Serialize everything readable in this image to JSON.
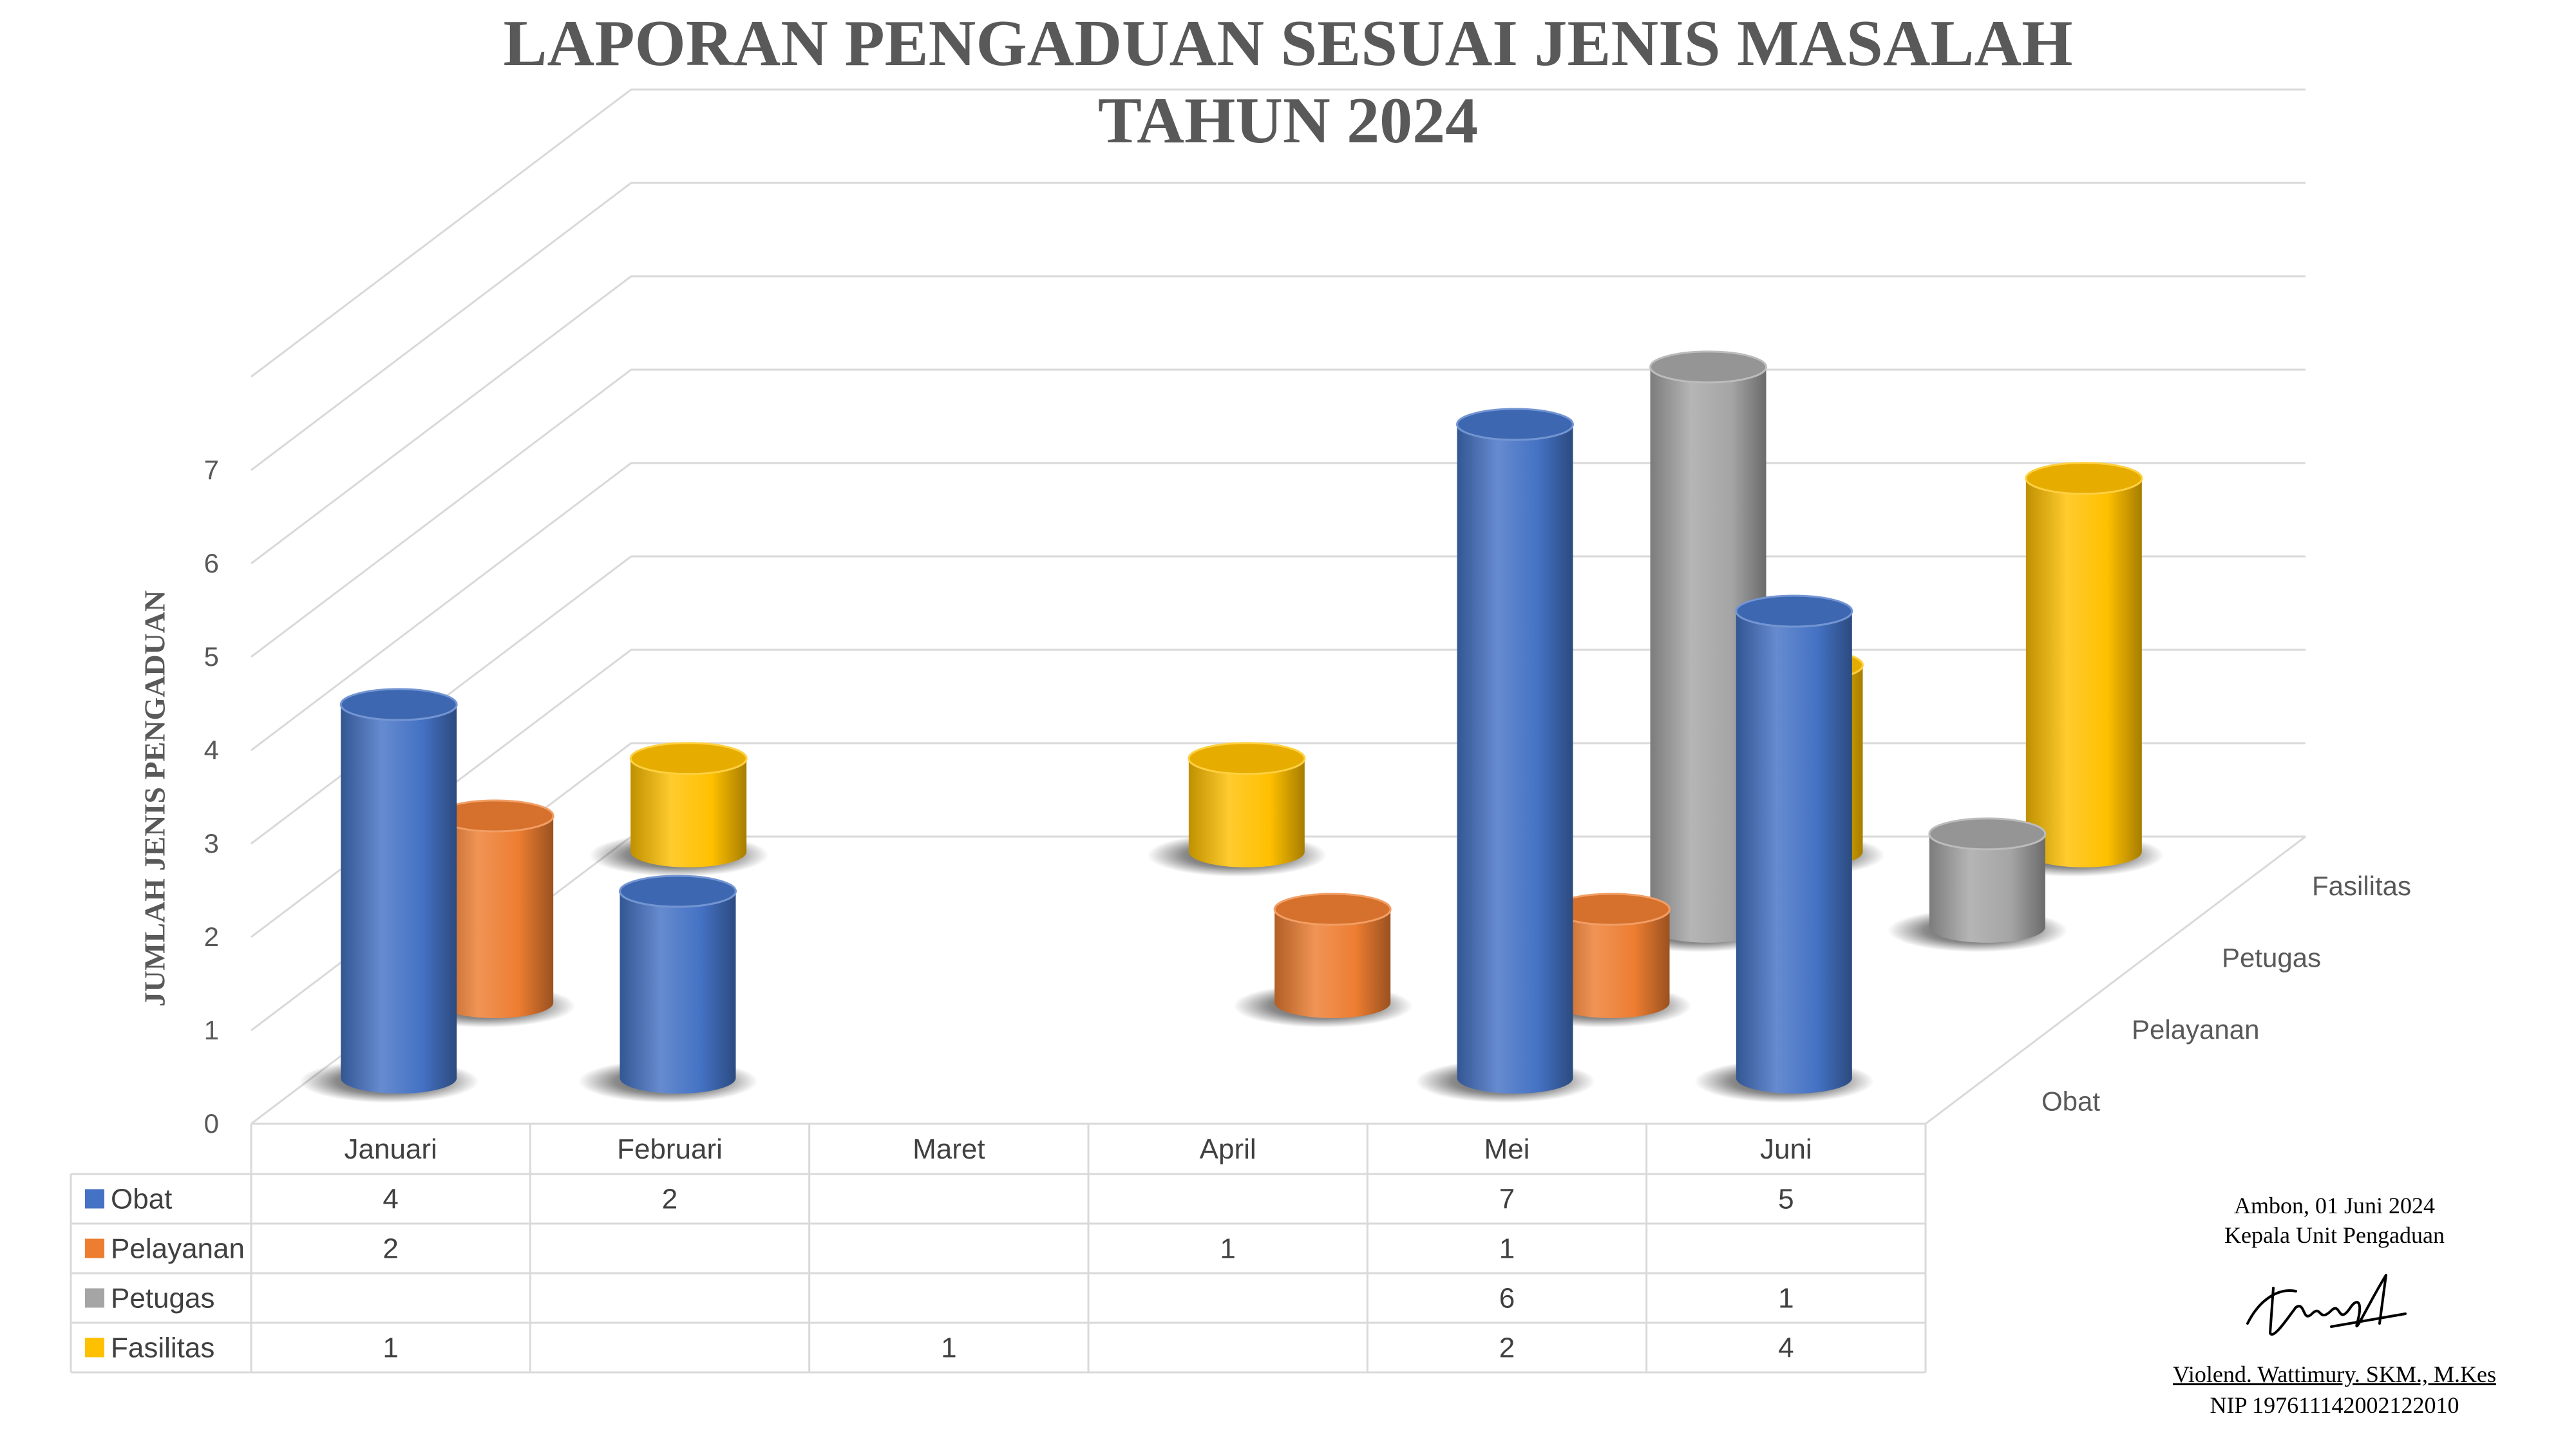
{
  "title": {
    "line1": "LAPORAN PENGADUAN SESUAI JENIS MASALAH",
    "line2": "TAHUN 2024"
  },
  "colors": {
    "Obat": "#4472C4",
    "Pelayanan": "#ED7D31",
    "Petugas": "#A5A5A5",
    "Fasilitas": "#FFC000"
  },
  "chart_data": {
    "type": "bar",
    "style": "3d-cylinder",
    "title": "LAPORAN PENGADUAN SESUAI JENIS MASALAH TAHUN 2024",
    "xlabel": "",
    "ylabel": "JUMLAH JENIS PENGADUAN",
    "categories": [
      "Januari",
      "Februari",
      "Maret",
      "April",
      "Mei",
      "Juni"
    ],
    "series": [
      {
        "name": "Obat",
        "values": [
          4,
          2,
          null,
          null,
          7,
          5
        ]
      },
      {
        "name": "Pelayanan",
        "values": [
          2,
          null,
          null,
          1,
          1,
          null
        ]
      },
      {
        "name": "Petugas",
        "values": [
          null,
          null,
          null,
          null,
          6,
          1
        ]
      },
      {
        "name": "Fasilitas",
        "values": [
          1,
          null,
          1,
          null,
          2,
          4
        ]
      }
    ],
    "yticks": [
      "0",
      "1",
      "2",
      "3",
      "4",
      "5",
      "6",
      "7"
    ],
    "ylim": [
      0,
      7
    ],
    "grid": true,
    "legend": "data-table"
  },
  "signature": {
    "place_date": "Ambon, 01 Juni 2024",
    "role": "Kepala Unit Pengaduan",
    "name": "Violend. Wattimury. SKM., M.Kes",
    "nip": "NIP 197611142002122010"
  }
}
